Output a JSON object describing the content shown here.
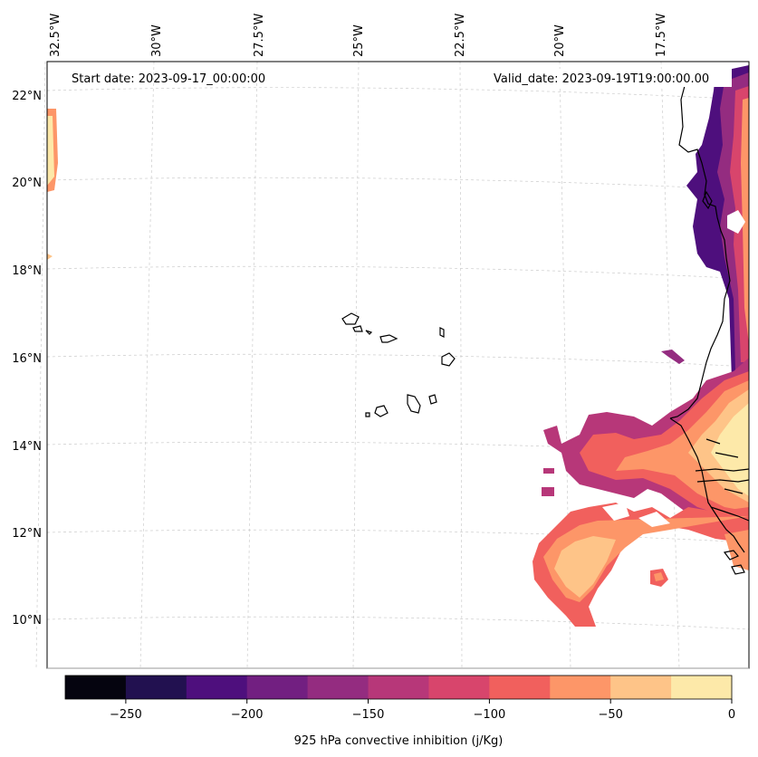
{
  "map": {
    "start_label": "Start date: 2023-09-17_00:00:00",
    "valid_label": "Valid_date: 2023-09-19T19:00:00.00",
    "lon_labels": [
      "32.5°W",
      "30°W",
      "27.5°W",
      "25°W",
      "22.5°W",
      "20°W",
      "17.5°W"
    ],
    "lat_labels": [
      "22°N",
      "20°N",
      "18°N",
      "16°N",
      "14°N",
      "12°N",
      "10°N"
    ],
    "colorbar": {
      "title": "925 hPa convective inhibition (j/Kg)",
      "tick_labels": [
        "−250",
        "−200",
        "−150",
        "−100",
        "−50",
        "0"
      ],
      "levels": [
        -275,
        -250,
        -225,
        -200,
        -175,
        -150,
        -125,
        -100,
        -75,
        -50,
        -25,
        0
      ],
      "colors": [
        "#05040f",
        "#221150",
        "#4e0f7d",
        "#721f81",
        "#942c80",
        "#b73779",
        "#d8456c",
        "#f1605d",
        "#fd9668",
        "#fec488",
        "#fde9a9"
      ]
    },
    "field_colors": {
      "deep": "#4e0f7d",
      "purple": "#721f81",
      "magenta": "#b73779",
      "rose": "#d8456c",
      "coral": "#f1605d",
      "salmon": "#fd9668",
      "peach": "#fec488",
      "cream": "#fde9a9",
      "coast": "#000000",
      "grid": "#cccccc"
    }
  }
}
